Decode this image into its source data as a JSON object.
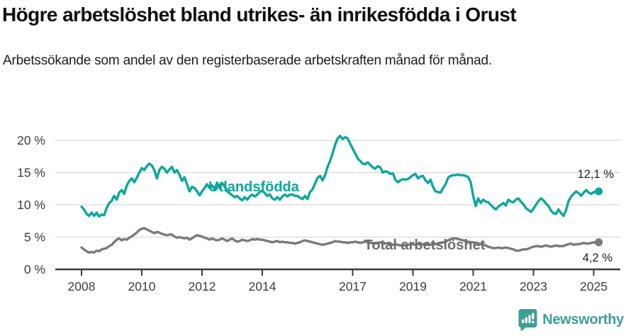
{
  "header": {
    "title": "Högre arbetslöshet bland utrikes- än inrikesfödda i Orust",
    "subtitle": "Arbetssökande som andel av den registerbaserade arbetskraften månad för månad."
  },
  "chart_data": {
    "type": "line",
    "title": "Högre arbetslöshet bland utrikes- än inrikesfödda i Orust",
    "xlabel": "",
    "ylabel": "Arbetssökande som andel av den registerbaserade arbetskraften",
    "grid": "horizontal",
    "legend_position": "inline-on-lines",
    "y_axis": {
      "range": [
        0,
        22
      ],
      "ticks": [
        {
          "label": "0 %",
          "value": 0
        },
        {
          "label": "5 %",
          "value": 5
        },
        {
          "label": "10 %",
          "value": 10
        },
        {
          "label": "15 %",
          "value": 15
        },
        {
          "label": "20 %",
          "value": 20
        }
      ]
    },
    "x_axis": {
      "range": [
        2008.0,
        2025.25
      ],
      "ticks": [
        {
          "label": "2008",
          "year": 2008
        },
        {
          "label": "2010",
          "year": 2010
        },
        {
          "label": "2012",
          "year": 2012
        },
        {
          "label": "2014",
          "year": 2014
        },
        {
          "label": "2017",
          "year": 2017
        },
        {
          "label": "2019",
          "year": 2019
        },
        {
          "label": "2021",
          "year": 2021
        },
        {
          "label": "2023",
          "year": 2023
        },
        {
          "label": "2025",
          "year": 2025
        }
      ]
    },
    "series": [
      {
        "name": "Utlandsfödda",
        "color": "#0da79b",
        "end_label": "12,1 %",
        "start_year": 2008,
        "step_months": 1,
        "values": [
          9.7,
          9.3,
          8.6,
          8.3,
          8.8,
          8.3,
          8.8,
          8.2,
          8.5,
          8.4,
          9.5,
          10.3,
          10.6,
          11.4,
          10.8,
          11.9,
          12.3,
          11.7,
          13.0,
          13.7,
          14.1,
          13.5,
          14.2,
          15.0,
          15.7,
          15.4,
          16.0,
          16.4,
          16.1,
          15.4,
          14.1,
          15.4,
          15.9,
          15.6,
          15.0,
          15.5,
          15.9,
          15.0,
          15.4,
          14.7,
          13.7,
          14.3,
          13.2,
          12.1,
          12.8,
          12.6,
          12.1,
          11.5,
          12.1,
          12.6,
          13.2,
          12.6,
          13.0,
          12.5,
          13.4,
          12.6,
          13.4,
          12.9,
          12.1,
          11.8,
          11.5,
          11.2,
          11.4,
          11.0,
          10.7,
          11.2,
          10.8,
          11.3,
          11.6,
          11.3,
          11.6,
          12.0,
          12.2,
          11.8,
          11.4,
          11.6,
          11.0,
          10.8,
          11.2,
          10.8,
          11.3,
          11.6,
          11.3,
          11.6,
          11.6,
          11.4,
          11.4,
          11.1,
          10.9,
          11.4,
          10.9,
          12.0,
          12.4,
          13.3,
          14.2,
          14.5,
          13.8,
          14.6,
          15.9,
          16.8,
          18.0,
          19.3,
          20.3,
          20.7,
          20.2,
          20.5,
          20.3,
          19.5,
          18.7,
          18.0,
          17.2,
          16.8,
          16.4,
          16.3,
          16.6,
          16.2,
          15.8,
          15.6,
          16.0,
          15.8,
          15.0,
          15.2,
          15.1,
          14.8,
          14.9,
          13.9,
          13.5,
          13.8,
          14.0,
          13.9,
          14.0,
          14.3,
          14.6,
          14.8,
          14.1,
          14.4,
          14.5,
          13.8,
          13.4,
          13.9,
          12.8,
          12.1,
          12.0,
          11.9,
          12.6,
          13.2,
          14.2,
          14.5,
          14.6,
          14.6,
          14.7,
          14.6,
          14.6,
          14.5,
          14.3,
          13.5,
          11.4,
          9.8,
          11.0,
          10.3,
          10.8,
          10.5,
          10.4,
          10.0,
          9.6,
          9.3,
          9.7,
          10.0,
          10.3,
          9.9,
          10.8,
          10.5,
          10.4,
          10.8,
          11.0,
          10.5,
          10.1,
          9.5,
          9.2,
          8.9,
          9.4,
          10.0,
          10.6,
          11.0,
          10.7,
          10.2,
          9.8,
          9.1,
          8.7,
          8.6,
          9.3,
          8.7,
          8.3,
          9.2,
          10.6,
          11.3,
          11.7,
          12.1,
          11.8,
          11.4,
          11.9,
          12.3,
          11.9,
          11.7,
          12.0,
          11.9,
          12.1
        ]
      },
      {
        "name": "Total arbetslöshet",
        "color": "#7b7b7b",
        "end_label": "4,2 %",
        "start_year": 2008,
        "step_months": 1,
        "values": [
          3.4,
          3.1,
          2.8,
          2.6,
          2.7,
          2.6,
          2.9,
          2.8,
          3.1,
          3.2,
          3.3,
          3.6,
          3.8,
          4.2,
          4.6,
          4.8,
          4.5,
          4.7,
          4.6,
          4.9,
          5.1,
          5.4,
          5.7,
          6.1,
          6.3,
          6.4,
          6.2,
          6.0,
          5.8,
          5.6,
          5.8,
          5.7,
          5.5,
          5.4,
          5.3,
          5.4,
          5.4,
          5.1,
          4.9,
          5.0,
          4.9,
          4.8,
          4.9,
          4.6,
          4.8,
          5.1,
          5.3,
          5.2,
          5.1,
          4.9,
          4.8,
          4.6,
          4.8,
          4.6,
          4.5,
          4.6,
          4.8,
          4.6,
          4.4,
          4.6,
          4.8,
          4.5,
          4.3,
          4.4,
          4.6,
          4.5,
          4.4,
          4.5,
          4.7,
          4.6,
          4.7,
          4.6,
          4.6,
          4.5,
          4.4,
          4.3,
          4.2,
          4.3,
          4.4,
          4.2,
          4.3,
          4.2,
          4.2,
          4.1,
          4.1,
          4.0,
          4.1,
          4.2,
          4.4,
          4.5,
          4.4,
          4.3,
          4.2,
          4.1,
          4.0,
          3.9,
          3.8,
          3.9,
          4.0,
          4.1,
          4.2,
          4.4,
          4.3,
          4.3,
          4.2,
          4.2,
          4.1,
          4.2,
          4.2,
          4.3,
          4.2,
          4.1,
          4.2,
          4.3,
          4.2,
          4.1,
          4.1,
          4.0,
          4.1,
          4.2,
          4.1,
          4.0,
          4.0,
          3.9,
          3.8,
          3.9,
          3.8,
          3.7,
          3.8,
          3.7,
          3.8,
          3.9,
          3.9,
          3.8,
          3.9,
          3.8,
          3.9,
          4.0,
          3.9,
          3.8,
          3.9,
          3.9,
          4.0,
          4.1,
          4.2,
          4.3,
          4.5,
          4.7,
          4.8,
          4.8,
          4.7,
          4.6,
          4.5,
          4.4,
          4.3,
          4.2,
          4.2,
          4.1,
          4.0,
          3.9,
          3.8,
          3.7,
          3.5,
          3.4,
          3.3,
          3.3,
          3.4,
          3.3,
          3.3,
          3.4,
          3.3,
          3.2,
          3.1,
          2.9,
          2.9,
          3.0,
          3.1,
          3.1,
          3.2,
          3.4,
          3.5,
          3.6,
          3.6,
          3.5,
          3.6,
          3.7,
          3.6,
          3.5,
          3.6,
          3.7,
          3.6,
          3.6,
          3.6,
          3.8,
          3.9,
          4.0,
          3.8,
          3.9,
          3.9,
          4.0,
          4.1,
          4.0,
          4.0,
          4.1,
          4.2,
          4.1,
          4.2
        ]
      }
    ],
    "colors": {
      "grid": "#d9d9d9",
      "axis": "#3a3a3a",
      "tick_text": "#3d3d3d",
      "series1": "#0da79b",
      "series2": "#7b7b7b",
      "series2_label": "#6e6e6e",
      "brand": "#3f9e96"
    }
  },
  "footer": {
    "brand": "Newsworthy"
  }
}
